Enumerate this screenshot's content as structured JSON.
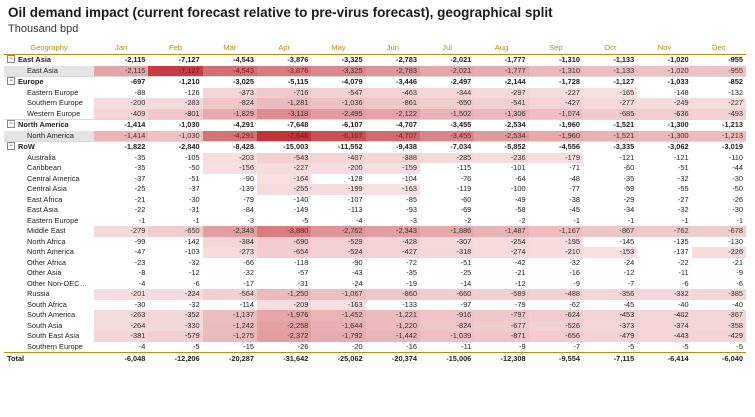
{
  "title": "Oil demand impact (current forecast relative to pre-virus forecast), geographical split",
  "subtitle": "Thousand bpd",
  "headers": [
    "Geography",
    "Jan",
    "Feb",
    "Mar",
    "Apr",
    "May",
    "Jun",
    "Jul",
    "Aug",
    "Sep",
    "Oct",
    "Nov",
    "Dec"
  ],
  "colors": {
    "header_text": "#c58a0c",
    "heat_max": "#c0343a",
    "heat_min": "#fbe9ea"
  },
  "rows": [
    {
      "type": "region",
      "name": "East Asia",
      "values": [
        "-2,115",
        "-7,127",
        "-4,543",
        "-3,876",
        "-3,325",
        "-2,783",
        "-2,021",
        "-1,777",
        "-1,310",
        "-1,133",
        "-1,020",
        "-955"
      ]
    },
    {
      "type": "child",
      "name": "East Asia",
      "sel": true,
      "values": [
        "-2,115",
        "-7,127",
        "-4,543",
        "-3,876",
        "-3,325",
        "-2,783",
        "-2,021",
        "-1,777",
        "-1,310",
        "-1,133",
        "-1,020",
        "-955"
      ]
    },
    {
      "type": "region",
      "name": "Europe",
      "values": [
        "-697",
        "-1,210",
        "-3,025",
        "-5,115",
        "-4,079",
        "-3,446",
        "-2,497",
        "-2,144",
        "-1,728",
        "-1,127",
        "-1,033",
        "-852"
      ]
    },
    {
      "type": "child",
      "name": "Eastern Europe",
      "values": [
        "-88",
        "-126",
        "-373",
        "-716",
        "-547",
        "-463",
        "-344",
        "-297",
        "-227",
        "-165",
        "-148",
        "-132"
      ]
    },
    {
      "type": "child",
      "name": "Southern Europe",
      "values": [
        "-200",
        "-283",
        "-824",
        "-1,281",
        "-1,036",
        "-861",
        "-650",
        "-541",
        "-427",
        "-277",
        "-249",
        "-227"
      ]
    },
    {
      "type": "child",
      "name": "Western Europe",
      "values": [
        "-409",
        "-801",
        "-1,829",
        "-3,118",
        "-2,495",
        "-2,122",
        "-1,502",
        "-1,306",
        "-1,074",
        "-685",
        "-636",
        "-493"
      ]
    },
    {
      "type": "region",
      "name": "North America",
      "values": [
        "-1,414",
        "-1,030",
        "-4,291",
        "-7,648",
        "-6,107",
        "-4,707",
        "-3,455",
        "-2,534",
        "-1,960",
        "-1,521",
        "-1,300",
        "-1,213"
      ]
    },
    {
      "type": "child",
      "name": "North America",
      "sel": true,
      "values": [
        "-1,414",
        "-1,030",
        "-4,291",
        "-7,648",
        "-6,107",
        "-4,707",
        "-3,455",
        "-2,534",
        "-1,960",
        "-1,521",
        "-1,300",
        "-1,213"
      ]
    },
    {
      "type": "region",
      "name": "RoW",
      "values": [
        "-1,822",
        "-2,840",
        "-8,428",
        "-15,003",
        "-11,552",
        "-9,438",
        "-7,034",
        "-5,852",
        "-4,556",
        "-3,335",
        "-3,062",
        "-3,019"
      ]
    },
    {
      "type": "child",
      "name": "Australia",
      "values": [
        "-35",
        "-105",
        "-203",
        "-543",
        "-407",
        "-388",
        "-285",
        "-236",
        "-179",
        "-121",
        "-121",
        "-110"
      ]
    },
    {
      "type": "child",
      "name": "Caribbean",
      "values": [
        "-35",
        "-50",
        "-156",
        "-227",
        "-200",
        "-159",
        "-115",
        "-101",
        "-71",
        "-60",
        "-51",
        "-44"
      ]
    },
    {
      "type": "child",
      "name": "Central America",
      "values": [
        "-37",
        "-51",
        "-90",
        "-164",
        "-128",
        "-104",
        "-76",
        "-64",
        "-48",
        "-35",
        "-32",
        "-30"
      ]
    },
    {
      "type": "child",
      "name": "Central Asia",
      "values": [
        "-25",
        "-37",
        "-139",
        "-255",
        "-199",
        "-163",
        "-119",
        "-100",
        "-77",
        "-59",
        "-55",
        "-50"
      ]
    },
    {
      "type": "child",
      "name": "East Africa",
      "values": [
        "-21",
        "-30",
        "-79",
        "-140",
        "-107",
        "-85",
        "-60",
        "-49",
        "-38",
        "-29",
        "-27",
        "-26"
      ]
    },
    {
      "type": "child",
      "name": "East Asia",
      "values": [
        "-22",
        "-31",
        "-84",
        "-149",
        "-113",
        "-93",
        "-69",
        "-58",
        "-45",
        "-34",
        "-32",
        "-30"
      ]
    },
    {
      "type": "child",
      "name": "Eastern Europe",
      "values": [
        "-1",
        "-1",
        "-3",
        "-5",
        "-4",
        "-3",
        "-2",
        "-2",
        "-1",
        "-1",
        "-1",
        "-1"
      ]
    },
    {
      "type": "child",
      "name": "Middle East",
      "values": [
        "-279",
        "-650",
        "-2,343",
        "-3,880",
        "-2,762",
        "-2,343",
        "-1,886",
        "-1,487",
        "-1,167",
        "-867",
        "-762",
        "-678"
      ]
    },
    {
      "type": "child",
      "name": "North Africa",
      "values": [
        "-99",
        "-142",
        "-384",
        "-690",
        "-529",
        "-428",
        "-307",
        "-254",
        "-195",
        "-145",
        "-135",
        "-130"
      ]
    },
    {
      "type": "child",
      "name": "North America",
      "values": [
        "-47",
        "-103",
        "-273",
        "-654",
        "-524",
        "-427",
        "-318",
        "-274",
        "-210",
        "-153",
        "-137",
        "-226"
      ]
    },
    {
      "type": "child",
      "name": "Other Africa",
      "values": [
        "-23",
        "-32",
        "-66",
        "-118",
        "-90",
        "-72",
        "-51",
        "-42",
        "-32",
        "-24",
        "-22",
        "-21"
      ]
    },
    {
      "type": "child",
      "name": "Other Asia",
      "values": [
        "-8",
        "-12",
        "-32",
        "-57",
        "-43",
        "-35",
        "-25",
        "-21",
        "-16",
        "-12",
        "-11",
        "-9"
      ]
    },
    {
      "type": "child",
      "name": "Other Non-OECD A...",
      "values": [
        "-4",
        "-6",
        "-17",
        "-31",
        "-24",
        "-19",
        "-14",
        "-12",
        "-9",
        "-7",
        "-6",
        "-6"
      ]
    },
    {
      "type": "child",
      "name": "Russia",
      "values": [
        "-201",
        "-224",
        "-564",
        "-1,250",
        "-1,067",
        "-860",
        "-660",
        "-589",
        "-488",
        "-356",
        "-332",
        "-385"
      ]
    },
    {
      "type": "child",
      "name": "South Africa",
      "values": [
        "-30",
        "-32",
        "-114",
        "-209",
        "-163",
        "-133",
        "-97",
        "-79",
        "-62",
        "-45",
        "-40",
        "-40"
      ]
    },
    {
      "type": "child",
      "name": "South America",
      "values": [
        "-263",
        "-352",
        "-1,137",
        "-1,976",
        "-1,452",
        "-1,221",
        "-916",
        "-797",
        "-624",
        "-453",
        "-402",
        "-367"
      ]
    },
    {
      "type": "child",
      "name": "South Asia",
      "values": [
        "-264",
        "-330",
        "-1,242",
        "-2,258",
        "-1,644",
        "-1,220",
        "-824",
        "-677",
        "-526",
        "-373",
        "-374",
        "-358"
      ]
    },
    {
      "type": "child",
      "name": "South East Asia",
      "values": [
        "-381",
        "-579",
        "-1,275",
        "-2,372",
        "-1,792",
        "-1,442",
        "-1,039",
        "-871",
        "-656",
        "-479",
        "-443",
        "-429"
      ]
    },
    {
      "type": "child",
      "name": "Southern Europe",
      "values": [
        "-4",
        "-5",
        "-15",
        "-26",
        "-20",
        "-16",
        "-11",
        "-9",
        "-7",
        "-5",
        "-5",
        "-5"
      ]
    }
  ],
  "total": {
    "name": "Total",
    "values": [
      "-6,048",
      "-12,206",
      "-20,287",
      "-31,642",
      "-25,062",
      "-20,374",
      "-15,006",
      "-12,308",
      "-9,554",
      "-7,115",
      "-6,414",
      "-6,040"
    ]
  }
}
